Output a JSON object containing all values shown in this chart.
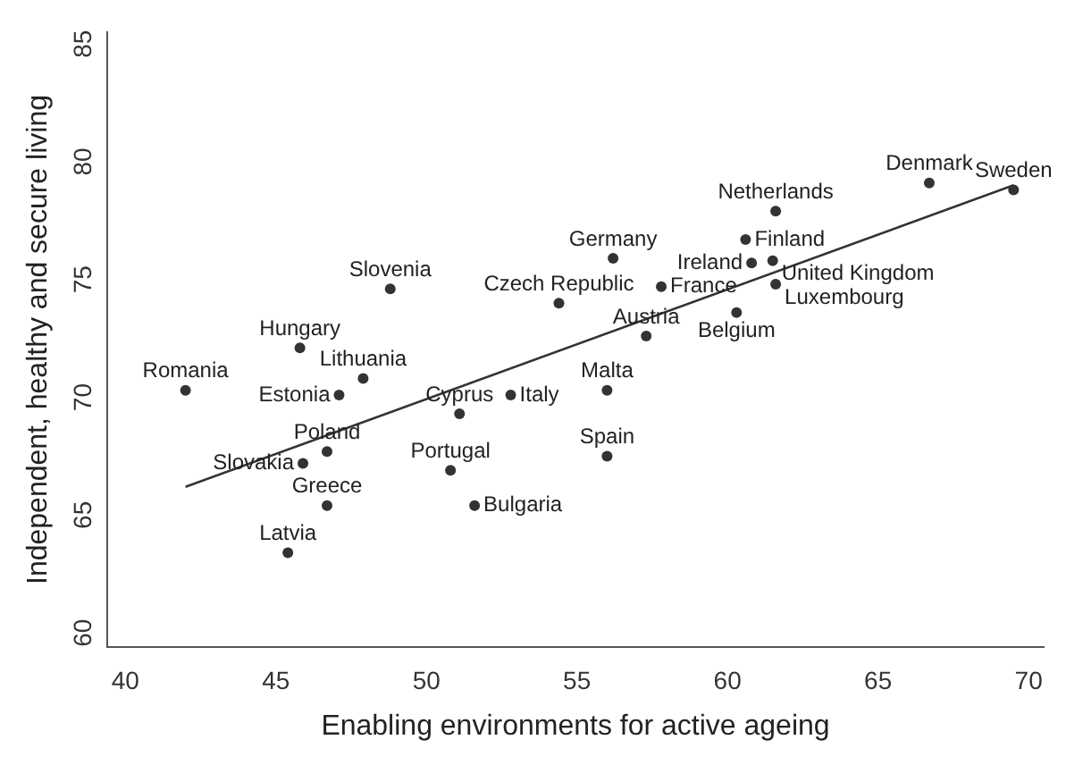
{
  "chart_data": {
    "type": "scatter",
    "xlabel": "Enabling environments for active ageing",
    "ylabel": "Independent, healthy and secure living",
    "xlim": [
      39.4,
      70.5
    ],
    "ylim": [
      59.4,
      85.5
    ],
    "xticks": [
      40,
      45,
      50,
      55,
      60,
      65,
      70
    ],
    "yticks": [
      60,
      65,
      70,
      75,
      80,
      85
    ],
    "grid": false,
    "legend": false,
    "marker": "circle",
    "series": [
      {
        "type": "scatter",
        "color": "#333333",
        "x": [
          42.0,
          45.8,
          47.9,
          47.1,
          46.7,
          45.9,
          46.7,
          45.4,
          48.8,
          51.1,
          52.8,
          50.8,
          51.6,
          54.4,
          56.2,
          57.3,
          56.0,
          56.0,
          57.8,
          60.8,
          60.6,
          61.6,
          61.5,
          61.6,
          60.3,
          66.7,
          69.5
        ],
        "values": [
          70.3,
          72.1,
          70.8,
          70.1,
          67.7,
          67.2,
          65.4,
          63.4,
          74.6,
          69.3,
          70.1,
          66.9,
          65.4,
          74.0,
          75.9,
          72.6,
          70.3,
          67.5,
          74.7,
          75.7,
          76.7,
          77.9,
          75.8,
          74.8,
          73.6,
          79.1,
          78.8
        ]
      },
      {
        "type": "line",
        "color": "#333333",
        "marker": "none",
        "line_style": "solid",
        "x": [
          42.0,
          69.5
        ],
        "values": [
          66.2,
          79.0
        ]
      }
    ],
    "annotations": [
      {
        "text": "Romania",
        "x": 42.0,
        "y": 70.3
      },
      {
        "text": "Hungary",
        "x": 45.8,
        "y": 72.1
      },
      {
        "text": "Lithuania",
        "x": 47.9,
        "y": 70.8
      },
      {
        "text": "Estonia",
        "x": 47.1,
        "y": 70.1
      },
      {
        "text": "Poland",
        "x": 46.7,
        "y": 67.7
      },
      {
        "text": "Slovakia",
        "x": 45.9,
        "y": 67.2
      },
      {
        "text": "Greece",
        "x": 46.7,
        "y": 65.4
      },
      {
        "text": "Latvia",
        "x": 45.4,
        "y": 63.4
      },
      {
        "text": "Slovenia",
        "x": 48.8,
        "y": 74.6
      },
      {
        "text": "Cyprus",
        "x": 51.1,
        "y": 69.3
      },
      {
        "text": "Italy",
        "x": 52.8,
        "y": 70.1
      },
      {
        "text": "Portugal",
        "x": 50.8,
        "y": 66.9
      },
      {
        "text": "Bulgaria",
        "x": 51.6,
        "y": 65.4
      },
      {
        "text": "Czech Republic",
        "x": 54.4,
        "y": 74.0
      },
      {
        "text": "Germany",
        "x": 56.2,
        "y": 75.9
      },
      {
        "text": "Austria",
        "x": 57.3,
        "y": 72.6
      },
      {
        "text": "Malta",
        "x": 56.0,
        "y": 70.3
      },
      {
        "text": "Spain",
        "x": 56.0,
        "y": 67.5
      },
      {
        "text": "France",
        "x": 57.8,
        "y": 74.7
      },
      {
        "text": "Ireland",
        "x": 60.8,
        "y": 75.7
      },
      {
        "text": "Finland",
        "x": 60.6,
        "y": 76.7
      },
      {
        "text": "Netherlands",
        "x": 61.6,
        "y": 77.9
      },
      {
        "text": "United Kingdom",
        "x": 61.5,
        "y": 75.8
      },
      {
        "text": "Luxembourg",
        "x": 61.6,
        "y": 74.8
      },
      {
        "text": "Belgium",
        "x": 60.3,
        "y": 73.6
      },
      {
        "text": "Denmark",
        "x": 66.7,
        "y": 79.1
      },
      {
        "text": "Sweden",
        "x": 69.5,
        "y": 78.8
      }
    ]
  }
}
